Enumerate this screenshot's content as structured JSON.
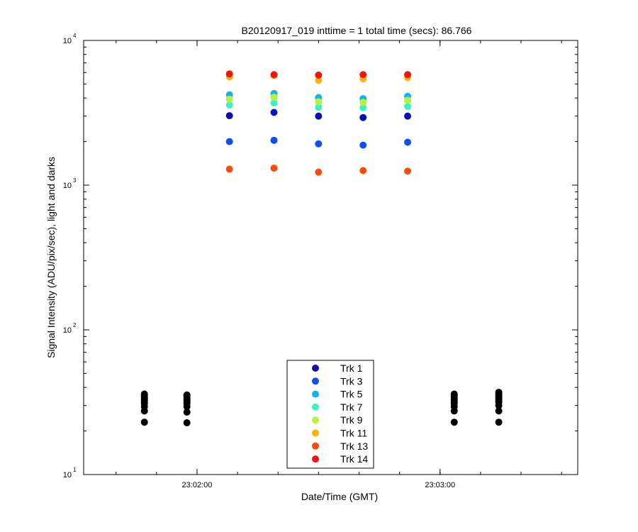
{
  "chart_data": {
    "type": "scatter",
    "title": "B20120917_019 inttime = 1 total time (secs): 86.766",
    "xlabel": "Date/Time (GMT)",
    "ylabel": "Signal Intensity (ADU/pix/sec), light and darks",
    "y_scale": "log",
    "ylim": [
      10,
      10000
    ],
    "xlim": [
      "23:01:32",
      "23:03:34"
    ],
    "x_ticks": [
      "23:02:00",
      "23:03:00"
    ],
    "y_ticks": [
      {
        "value": 10,
        "base": "10",
        "exp": "1"
      },
      {
        "value": 100,
        "base": "10",
        "exp": "2"
      },
      {
        "value": 1000,
        "base": "10",
        "exp": "3"
      },
      {
        "value": 10000,
        "base": "10",
        "exp": "4"
      }
    ],
    "grid": false,
    "legend_position": "bottom-center",
    "light_times": [
      "23:02:08.0",
      "23:02:19.0",
      "23:02:30.0",
      "23:02:41.0",
      "23:02:52.0"
    ],
    "series": [
      {
        "name": "Trk 1",
        "color": "#0a10b4",
        "values": [
          3020,
          3180,
          3000,
          2930,
          3000
        ]
      },
      {
        "name": "Trk 3",
        "color": "#0f4ff2",
        "values": [
          2000,
          2040,
          1930,
          1890,
          1980
        ]
      },
      {
        "name": "Trk 5",
        "color": "#0fb4ec",
        "values": [
          4210,
          4300,
          4030,
          3960,
          4110
        ]
      },
      {
        "name": "Trk 7",
        "color": "#3cf2c2",
        "values": [
          3580,
          3700,
          3450,
          3430,
          3500
        ]
      },
      {
        "name": "Trk 9",
        "color": "#b4f23c",
        "values": [
          3920,
          4050,
          3770,
          3730,
          3860
        ]
      },
      {
        "name": "Trk 11",
        "color": "#fcb20c",
        "values": [
          5600,
          5720,
          5300,
          5420,
          5520
        ]
      },
      {
        "name": "Trk 13",
        "color": "#f84c0c",
        "values": [
          1290,
          1310,
          1230,
          1260,
          1250
        ]
      },
      {
        "name": "Trk 14",
        "color": "#f4140c",
        "values": [
          5870,
          5800,
          5760,
          5800,
          5800
        ]
      }
    ],
    "darks": {
      "color": "#000000",
      "times": [
        "23:01:47.0",
        "23:01:57.5",
        "23:03:03.5",
        "23:03:14.5"
      ],
      "values": [
        [
          23,
          27.5,
          29.5,
          31,
          32,
          33,
          34,
          35,
          36
        ],
        [
          22.8,
          27,
          29.5,
          31,
          32,
          33,
          34,
          35,
          35.5
        ],
        [
          23,
          27.5,
          29.5,
          31,
          32,
          33,
          34,
          35,
          36
        ],
        [
          23,
          27.5,
          30,
          31.5,
          32.5,
          33.5,
          34.5,
          35.5,
          37
        ]
      ]
    }
  }
}
